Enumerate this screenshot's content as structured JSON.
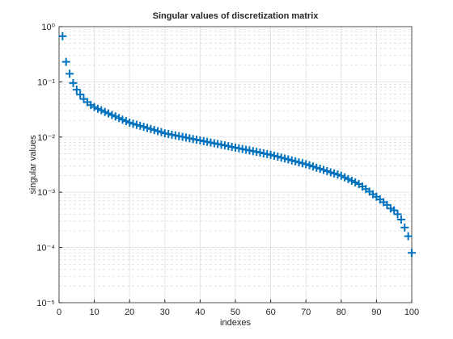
{
  "chart_data": {
    "type": "scatter",
    "title": "Singular values of discretization matrix",
    "x_label": "indexes",
    "y_label": "singular values",
    "x": [
      1,
      2,
      3,
      4,
      5,
      6,
      7,
      8,
      9,
      10,
      11,
      12,
      13,
      14,
      15,
      16,
      17,
      18,
      19,
      20,
      21,
      22,
      23,
      24,
      25,
      26,
      27,
      28,
      29,
      30,
      31,
      32,
      33,
      34,
      35,
      36,
      37,
      38,
      39,
      40,
      41,
      42,
      43,
      44,
      45,
      46,
      47,
      48,
      49,
      50,
      51,
      52,
      53,
      54,
      55,
      56,
      57,
      58,
      59,
      60,
      61,
      62,
      63,
      64,
      65,
      66,
      67,
      68,
      69,
      70,
      71,
      72,
      73,
      74,
      75,
      76,
      77,
      78,
      79,
      80,
      81,
      82,
      83,
      84,
      85,
      86,
      87,
      88,
      89,
      90,
      91,
      92,
      93,
      94,
      95,
      96,
      97,
      98,
      99,
      100
    ],
    "values": [
      0.67,
      0.23,
      0.14,
      0.095,
      0.072,
      0.059,
      0.049,
      0.043,
      0.038,
      0.035,
      0.0325,
      0.0305,
      0.0286,
      0.0268,
      0.0251,
      0.0236,
      0.0221,
      0.0207,
      0.0194,
      0.0182,
      0.0174,
      0.0167,
      0.016,
      0.0153,
      0.0146,
      0.014,
      0.0134,
      0.0128,
      0.0123,
      0.0117,
      0.01137,
      0.01103,
      0.01071,
      0.01039,
      0.01009,
      0.00979,
      0.0095,
      0.00922,
      0.00895,
      0.00869,
      0.00843,
      0.00818,
      0.00794,
      0.00771,
      0.00748,
      0.00726,
      0.00705,
      0.00684,
      0.00664,
      0.00645,
      0.00626,
      0.00607,
      0.00589,
      0.00572,
      0.00555,
      0.00539,
      0.00523,
      0.00507,
      0.00492,
      0.00478,
      0.0046,
      0.00442,
      0.00425,
      0.00409,
      0.00393,
      0.00378,
      0.00363,
      0.00349,
      0.00336,
      0.00323,
      0.00308,
      0.00293,
      0.00279,
      0.00266,
      0.00254,
      0.00242,
      0.0023,
      0.00219,
      0.00209,
      0.00199,
      0.00186,
      0.00173,
      0.00162,
      0.00151,
      0.00141,
      0.00127,
      0.00114,
      0.00103,
      0.00092,
      0.00083,
      0.00074,
      0.00066,
      0.00059,
      0.00051,
      0.00047,
      0.0004,
      0.00032,
      0.00023,
      0.00016,
      8e-05
    ],
    "color": "#0072bd",
    "marker": "+",
    "xlim": [
      0,
      100
    ],
    "xticks": [
      0,
      10,
      20,
      30,
      40,
      50,
      60,
      70,
      80,
      90,
      100
    ],
    "ylim": [
      1e-05,
      1
    ],
    "yticks": [
      {
        "value": 1e-05,
        "label": "10⁻⁵"
      },
      {
        "value": 0.0001,
        "label": "10⁻⁴"
      },
      {
        "value": 0.001,
        "label": "10⁻³"
      },
      {
        "value": 0.01,
        "label": "10⁻²"
      },
      {
        "value": 0.1,
        "label": "10⁻¹"
      },
      {
        "value": 1,
        "label": "10⁰"
      }
    ],
    "y_scale": "log",
    "grid": true,
    "minor_grid": true
  }
}
